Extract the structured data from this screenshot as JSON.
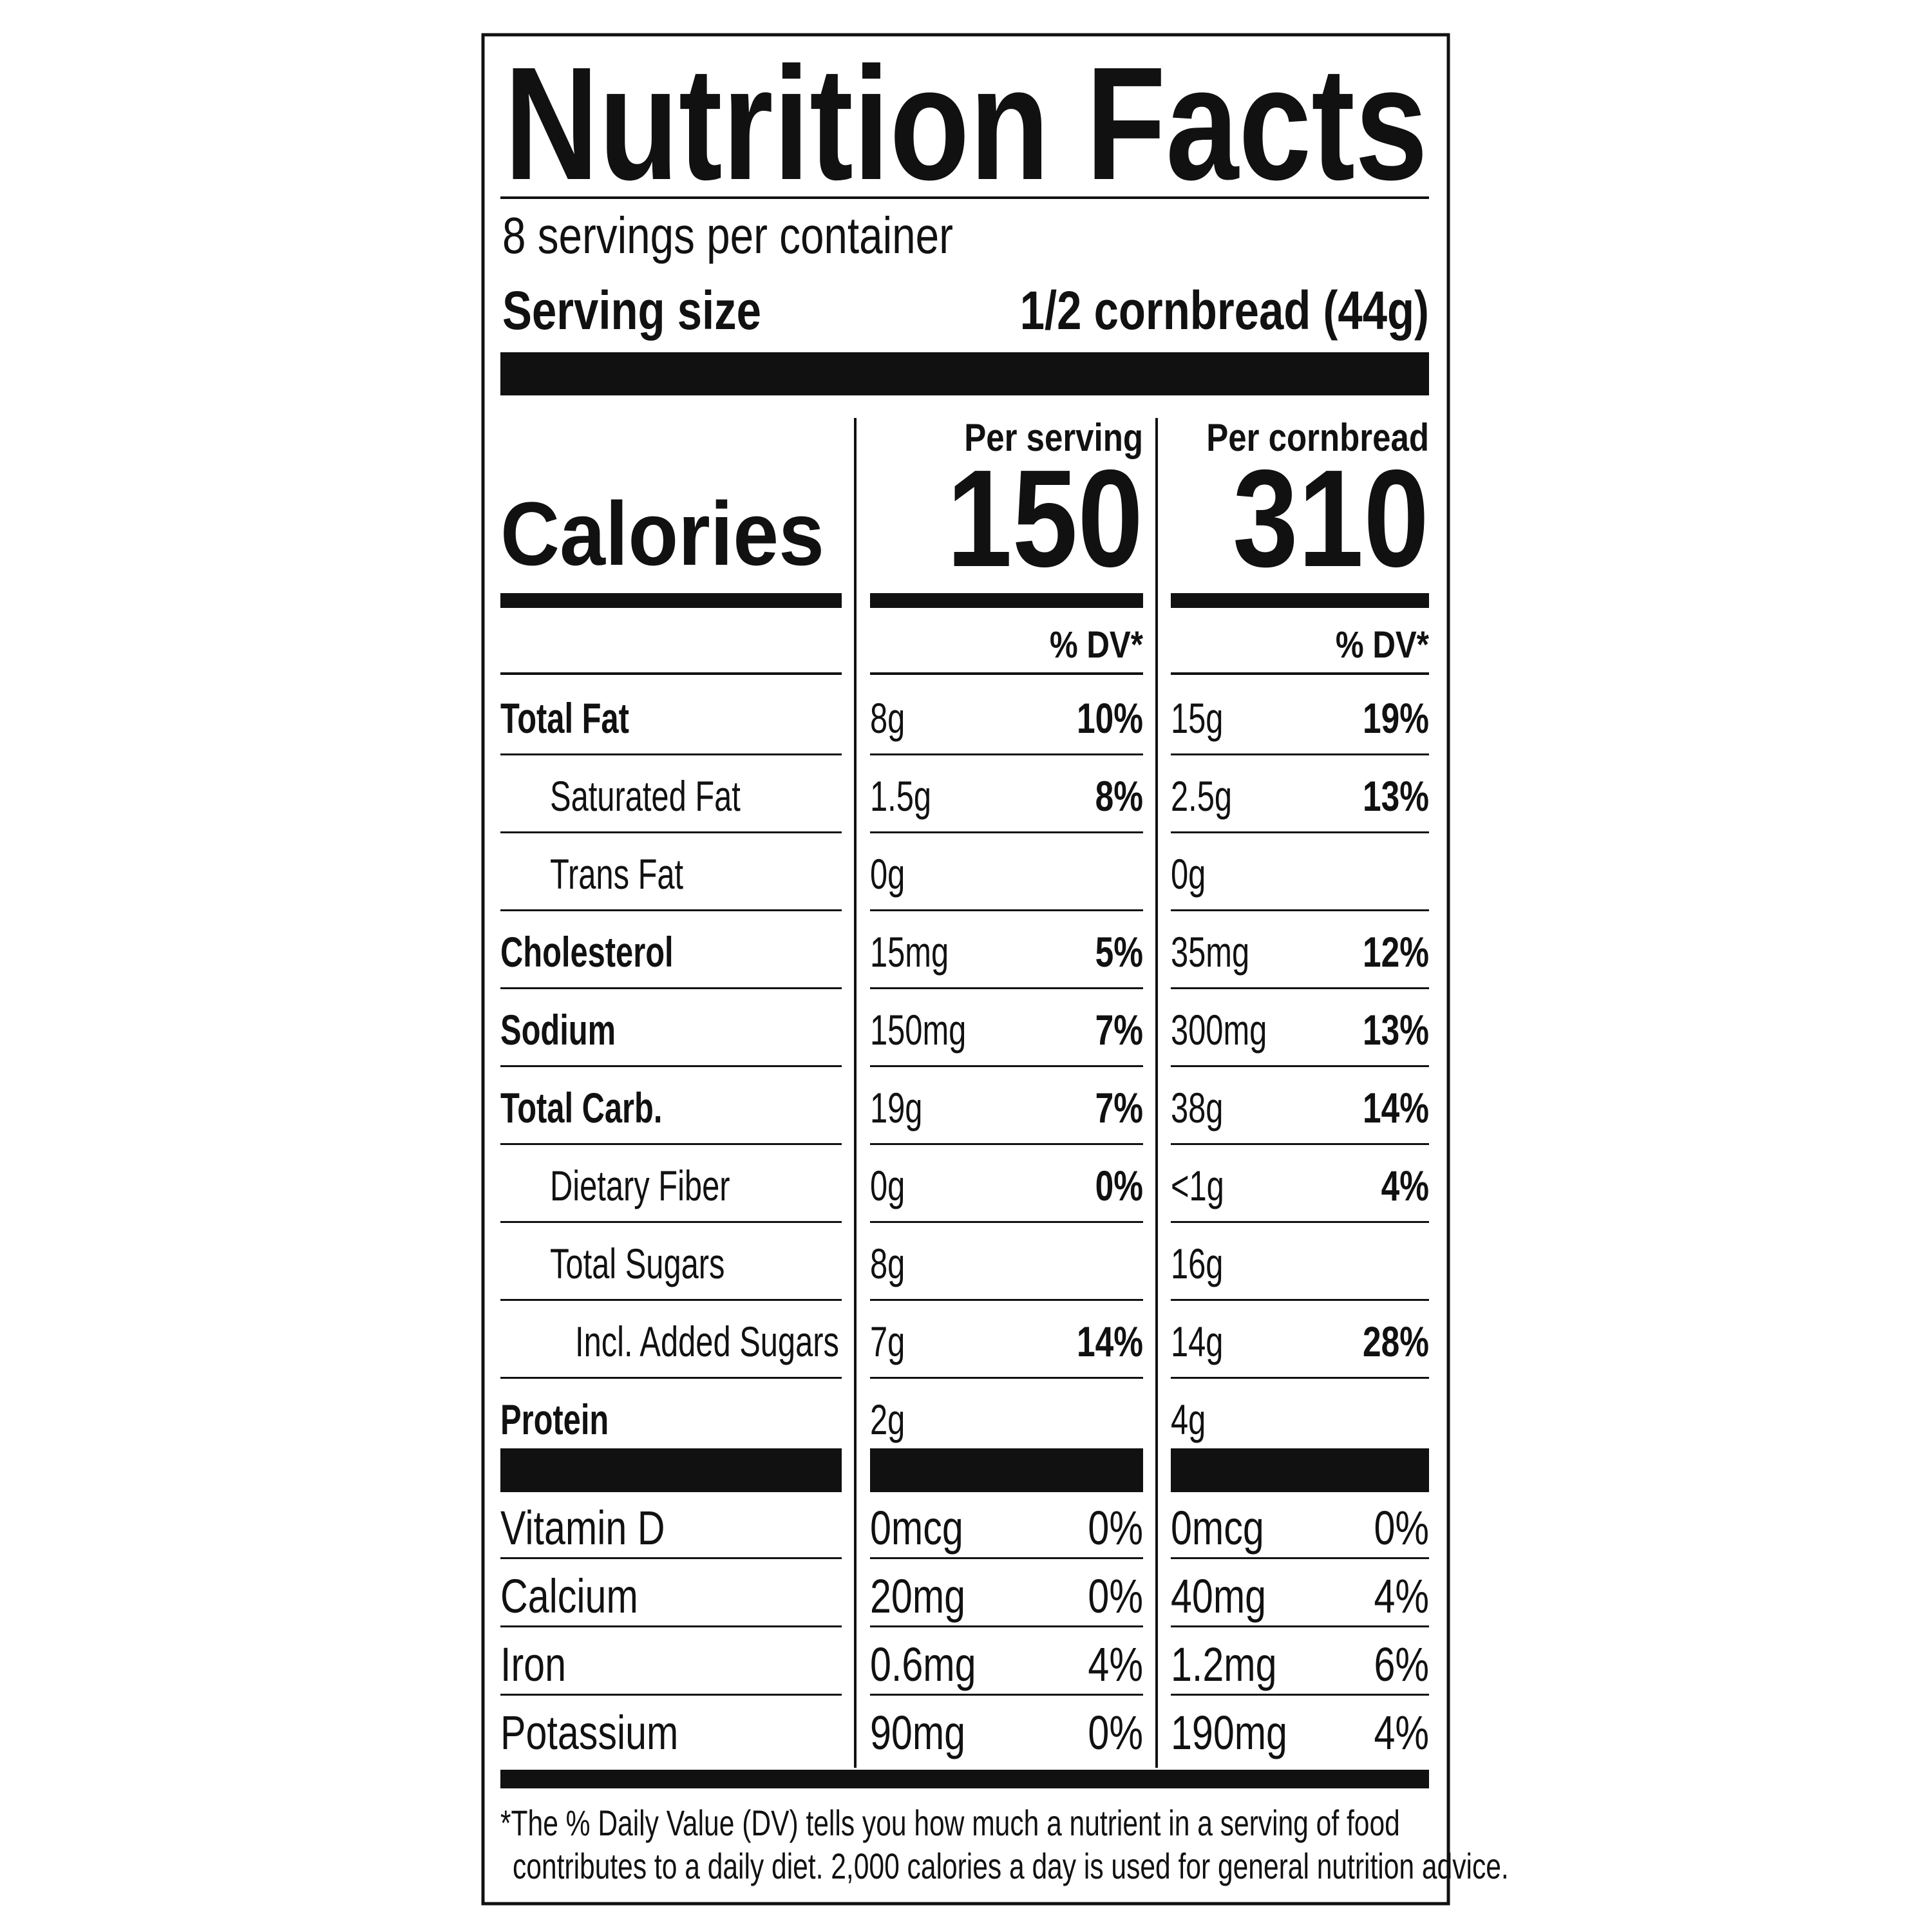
{
  "header": {
    "title": "Nutrition Facts",
    "servings": "8 servings per container",
    "serving_size_label": "Serving size",
    "serving_size": "1/2 cornbread (44g)"
  },
  "calories_label": "Calories",
  "columns": [
    {
      "heading": "Per serving",
      "calories": "150",
      "dv_heading": "% DV*"
    },
    {
      "heading": "Per cornbread",
      "calories": "310",
      "dv_heading": "% DV*"
    }
  ],
  "nutrients": [
    {
      "name": "Total Fat",
      "bold": true,
      "indent": 0,
      "values": [
        [
          "8g",
          "10%"
        ],
        [
          "15g",
          "19%"
        ]
      ]
    },
    {
      "name": "Saturated Fat",
      "bold": false,
      "indent": 1,
      "values": [
        [
          "1.5g",
          "8%"
        ],
        [
          "2.5g",
          "13%"
        ]
      ]
    },
    {
      "name": "Trans Fat",
      "bold": false,
      "indent": 1,
      "values": [
        [
          "0g",
          null
        ],
        [
          "0g",
          null
        ]
      ]
    },
    {
      "name": "Cholesterol",
      "bold": true,
      "indent": 0,
      "values": [
        [
          "15mg",
          "5%"
        ],
        [
          "35mg",
          "12%"
        ]
      ]
    },
    {
      "name": "Sodium",
      "bold": true,
      "indent": 0,
      "values": [
        [
          "150mg",
          "7%"
        ],
        [
          "300mg",
          "13%"
        ]
      ]
    },
    {
      "name": "Total Carb.",
      "bold": true,
      "indent": 0,
      "values": [
        [
          "19g",
          "7%"
        ],
        [
          "38g",
          "14%"
        ]
      ]
    },
    {
      "name": "Dietary Fiber",
      "bold": false,
      "indent": 1,
      "values": [
        [
          "0g",
          "0%"
        ],
        [
          "<1g",
          "4%"
        ]
      ]
    },
    {
      "name": "Total Sugars",
      "bold": false,
      "indent": 1,
      "values": [
        [
          "8g",
          null
        ],
        [
          "16g",
          null
        ]
      ]
    },
    {
      "name": "Incl. Added Sugars",
      "bold": false,
      "indent": 2,
      "values": [
        [
          "7g",
          "14%"
        ],
        [
          "14g",
          "28%"
        ]
      ]
    },
    {
      "name": "Protein",
      "bold": true,
      "indent": 0,
      "values": [
        [
          "2g",
          null
        ],
        [
          "4g",
          null
        ]
      ]
    }
  ],
  "minerals": [
    {
      "name": "Vitamin D",
      "values": [
        [
          "0mcg",
          "0%"
        ],
        [
          "0mcg",
          "0%"
        ]
      ]
    },
    {
      "name": "Calcium",
      "values": [
        [
          "20mg",
          "0%"
        ],
        [
          "40mg",
          "4%"
        ]
      ]
    },
    {
      "name": "Iron",
      "values": [
        [
          "0.6mg",
          "4%"
        ],
        [
          "1.2mg",
          "6%"
        ]
      ]
    },
    {
      "name": "Potassium",
      "values": [
        [
          "90mg",
          "0%"
        ],
        [
          "190mg",
          "4%"
        ]
      ]
    }
  ],
  "footnote": [
    "*The % Daily Value (DV) tells you how much a nutrient in a serving of food",
    "contributes to a daily diet. 2,000 calories a day is used for general nutrition advice."
  ]
}
